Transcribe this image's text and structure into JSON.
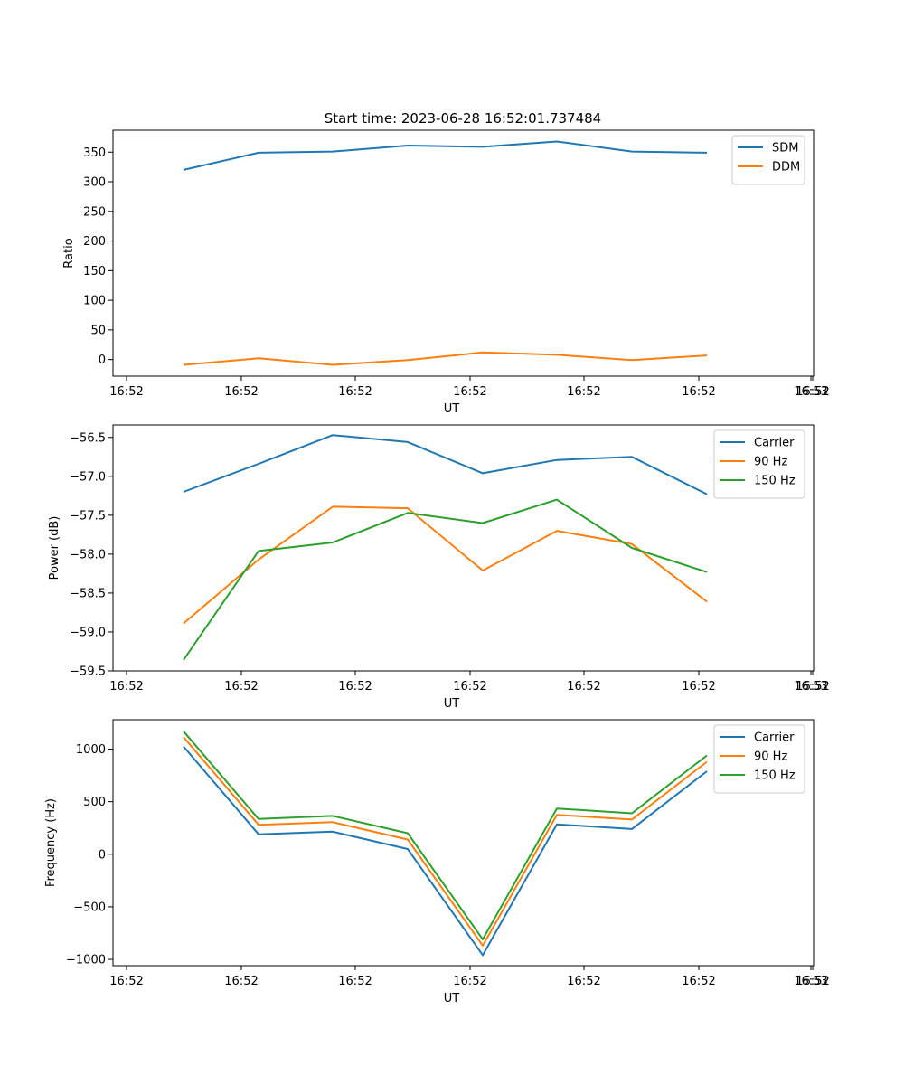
{
  "title": "Start time: 2023-06-28 16:52:01.737484",
  "colors": {
    "blue": "#1f77b4",
    "orange": "#ff7f0e",
    "green": "#2ca02c"
  },
  "chart_data": [
    {
      "type": "line",
      "xlabel": "UT",
      "ylabel": "Ratio",
      "x_tick_labels": [
        "16:52",
        "16:52",
        "16:52",
        "16:52",
        "16:52",
        "16:52",
        "16:52",
        "16:53"
      ],
      "y_ticks": [
        0,
        50,
        100,
        150,
        200,
        250,
        300,
        350
      ],
      "ylim": [
        -28,
        387
      ],
      "legend": "upper right",
      "series": [
        {
          "name": "SDM",
          "color": "#1f77b4",
          "values": [
            320,
            349,
            351,
            361,
            359,
            368,
            351,
            349
          ]
        },
        {
          "name": "DDM",
          "color": "#ff7f0e",
          "values": [
            -9,
            2,
            -9,
            -1,
            12,
            8,
            -1,
            7
          ]
        }
      ]
    },
    {
      "type": "line",
      "xlabel": "UT",
      "ylabel": "Power (dB)",
      "x_tick_labels": [
        "16:52",
        "16:52",
        "16:52",
        "16:52",
        "16:52",
        "16:52",
        "16:52",
        "16:53"
      ],
      "y_ticks": [
        -59.5,
        -59.0,
        -58.5,
        -58.0,
        -57.5,
        -57.0,
        -56.5
      ],
      "y_tick_labels": [
        "−59.5",
        "−59.0",
        "−58.5",
        "−58.0",
        "−57.5",
        "−57.0",
        "−56.5"
      ],
      "ylim": [
        -59.5,
        -56.34
      ],
      "legend": "upper right",
      "series": [
        {
          "name": "Carrier",
          "color": "#1f77b4",
          "values": [
            -57.2,
            -56.84,
            -56.47,
            -56.56,
            -56.96,
            -56.79,
            -56.75,
            -57.23
          ]
        },
        {
          "name": "90 Hz",
          "color": "#ff7f0e",
          "values": [
            -58.89,
            -58.07,
            -57.39,
            -57.41,
            -58.21,
            -57.7,
            -57.87,
            -58.61
          ]
        },
        {
          "name": "150 Hz",
          "color": "#2ca02c",
          "values": [
            -59.36,
            -57.96,
            -57.85,
            -57.47,
            -57.6,
            -57.3,
            -57.92,
            -58.23
          ]
        }
      ]
    },
    {
      "type": "line",
      "xlabel": "UT",
      "ylabel": "Frequency (Hz)",
      "x_tick_labels": [
        "16:52",
        "16:52",
        "16:52",
        "16:52",
        "16:52",
        "16:52",
        "16:52",
        "16:53"
      ],
      "y_ticks": [
        -1000,
        -500,
        0,
        500,
        1000
      ],
      "y_tick_labels": [
        "−1000",
        "−500",
        "0",
        "500",
        "1000"
      ],
      "ylim": [
        -1060,
        1280
      ],
      "legend": "upper right",
      "series": [
        {
          "name": "Carrier",
          "color": "#1f77b4",
          "values": [
            1025,
            190,
            215,
            50,
            -960,
            285,
            240,
            790
          ]
        },
        {
          "name": "90 Hz",
          "color": "#ff7f0e",
          "values": [
            1115,
            280,
            305,
            140,
            -870,
            375,
            330,
            880
          ]
        },
        {
          "name": "150 Hz",
          "color": "#2ca02c",
          "values": [
            1170,
            335,
            365,
            200,
            -810,
            435,
            390,
            940
          ]
        }
      ]
    }
  ]
}
